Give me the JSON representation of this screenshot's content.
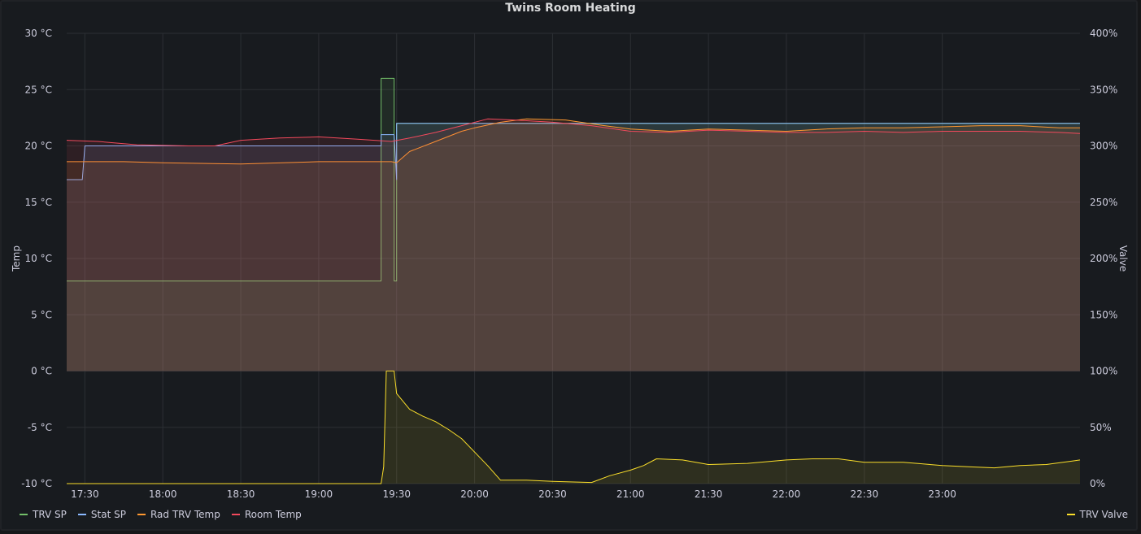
{
  "chart_data": {
    "type": "line",
    "title": "Twins Room Heating",
    "x_ticks": [
      "17:30",
      "18:00",
      "18:30",
      "19:00",
      "19:30",
      "20:00",
      "20:30",
      "21:00",
      "21:30",
      "22:00",
      "22:30",
      "23:00"
    ],
    "x_range": [
      "17:23",
      "23:53"
    ],
    "y_left": {
      "label": "Temp",
      "range": [
        -10,
        30
      ],
      "ticks": [
        "30 °C",
        "25 °C",
        "20 °C",
        "15 °C",
        "10 °C",
        "5 °C",
        "0 °C",
        "-5 °C",
        "-10 °C"
      ]
    },
    "y_right": {
      "label": "Valve",
      "range": [
        0,
        400
      ],
      "ticks": [
        "400%",
        "350%",
        "300%",
        "250%",
        "200%",
        "150%",
        "100%",
        "50%",
        "0%"
      ]
    },
    "grid": true,
    "legend_placement": "bottom",
    "series": [
      {
        "name": "TRV SP",
        "axis": "left",
        "color": "#73bf69",
        "points": [
          [
            "17:23",
            8
          ],
          [
            "19:24",
            8
          ],
          [
            "19:24",
            26
          ],
          [
            "19:29",
            26
          ],
          [
            "19:29",
            8
          ],
          [
            "19:30",
            8
          ],
          [
            "19:30",
            22
          ],
          [
            "23:53",
            22
          ]
        ]
      },
      {
        "name": "Stat SP",
        "axis": "left",
        "color": "#8ab8ff",
        "points": [
          [
            "17:23",
            17
          ],
          [
            "17:29",
            17
          ],
          [
            "17:30",
            20
          ],
          [
            "19:24",
            20
          ],
          [
            "19:24",
            21
          ],
          [
            "19:29",
            21
          ],
          [
            "19:30",
            17
          ],
          [
            "19:30",
            22
          ],
          [
            "23:53",
            22
          ]
        ]
      },
      {
        "name": "Rad TRV Temp",
        "axis": "left",
        "color": "#ff9830",
        "points": [
          [
            "17:23",
            18.6
          ],
          [
            "17:45",
            18.6
          ],
          [
            "18:00",
            18.5
          ],
          [
            "18:30",
            18.4
          ],
          [
            "19:00",
            18.6
          ],
          [
            "19:28",
            18.6
          ],
          [
            "19:30",
            18.5
          ],
          [
            "19:35",
            19.5
          ],
          [
            "19:45",
            20.4
          ],
          [
            "19:55",
            21.3
          ],
          [
            "20:00",
            21.6
          ],
          [
            "20:10",
            22.1
          ],
          [
            "20:20",
            22.4
          ],
          [
            "20:35",
            22.3
          ],
          [
            "20:50",
            21.8
          ],
          [
            "21:00",
            21.5
          ],
          [
            "21:15",
            21.3
          ],
          [
            "21:30",
            21.5
          ],
          [
            "21:45",
            21.4
          ],
          [
            "22:00",
            21.3
          ],
          [
            "22:15",
            21.5
          ],
          [
            "22:30",
            21.6
          ],
          [
            "22:45",
            21.6
          ],
          [
            "23:00",
            21.7
          ],
          [
            "23:15",
            21.8
          ],
          [
            "23:30",
            21.8
          ],
          [
            "23:45",
            21.6
          ],
          [
            "23:53",
            21.6
          ]
        ]
      },
      {
        "name": "Room Temp",
        "axis": "left",
        "color": "#f2495c",
        "points": [
          [
            "17:23",
            20.5
          ],
          [
            "17:35",
            20.4
          ],
          [
            "17:50",
            20.1
          ],
          [
            "18:10",
            20.0
          ],
          [
            "18:20",
            20.0
          ],
          [
            "18:30",
            20.5
          ],
          [
            "18:45",
            20.7
          ],
          [
            "19:00",
            20.8
          ],
          [
            "19:15",
            20.6
          ],
          [
            "19:28",
            20.4
          ],
          [
            "19:35",
            20.7
          ],
          [
            "19:45",
            21.2
          ],
          [
            "19:55",
            21.8
          ],
          [
            "20:05",
            22.4
          ],
          [
            "20:15",
            22.3
          ],
          [
            "20:30",
            22.1
          ],
          [
            "20:45",
            21.8
          ],
          [
            "21:00",
            21.3
          ],
          [
            "21:15",
            21.2
          ],
          [
            "21:30",
            21.4
          ],
          [
            "21:45",
            21.3
          ],
          [
            "22:00",
            21.2
          ],
          [
            "22:15",
            21.2
          ],
          [
            "22:30",
            21.3
          ],
          [
            "22:45",
            21.2
          ],
          [
            "23:00",
            21.3
          ],
          [
            "23:15",
            21.3
          ],
          [
            "23:30",
            21.3
          ],
          [
            "23:45",
            21.2
          ],
          [
            "23:53",
            21.1
          ]
        ]
      },
      {
        "name": "TRV Valve",
        "axis": "right",
        "color": "#fade2a",
        "points": [
          [
            "17:23",
            0
          ],
          [
            "19:24",
            0
          ],
          [
            "19:25",
            15
          ],
          [
            "19:26",
            100
          ],
          [
            "19:29",
            100
          ],
          [
            "19:30",
            80
          ],
          [
            "19:35",
            66
          ],
          [
            "19:40",
            60
          ],
          [
            "19:45",
            55
          ],
          [
            "19:50",
            48
          ],
          [
            "19:55",
            40
          ],
          [
            "20:00",
            28
          ],
          [
            "20:05",
            16
          ],
          [
            "20:10",
            3
          ],
          [
            "20:20",
            3
          ],
          [
            "20:30",
            2
          ],
          [
            "20:45",
            1
          ],
          [
            "20:52",
            7
          ],
          [
            "21:00",
            12
          ],
          [
            "21:05",
            16
          ],
          [
            "21:10",
            22
          ],
          [
            "21:20",
            21
          ],
          [
            "21:30",
            17
          ],
          [
            "21:45",
            18
          ],
          [
            "22:00",
            21
          ],
          [
            "22:10",
            22
          ],
          [
            "22:20",
            22
          ],
          [
            "22:30",
            19
          ],
          [
            "22:45",
            19
          ],
          [
            "23:00",
            16
          ],
          [
            "23:10",
            15
          ],
          [
            "23:20",
            14
          ],
          [
            "23:30",
            16
          ],
          [
            "23:40",
            17
          ],
          [
            "23:50",
            20
          ],
          [
            "23:53",
            21
          ]
        ]
      }
    ]
  },
  "legend_left": [
    {
      "label": "TRV SP",
      "color": "#73bf69"
    },
    {
      "label": "Stat SP",
      "color": "#8ab8ff"
    },
    {
      "label": "Rad TRV Temp",
      "color": "#ff9830"
    },
    {
      "label": "Room Temp",
      "color": "#f2495c"
    }
  ],
  "legend_right": [
    {
      "label": "TRV Valve",
      "color": "#fade2a"
    }
  ]
}
